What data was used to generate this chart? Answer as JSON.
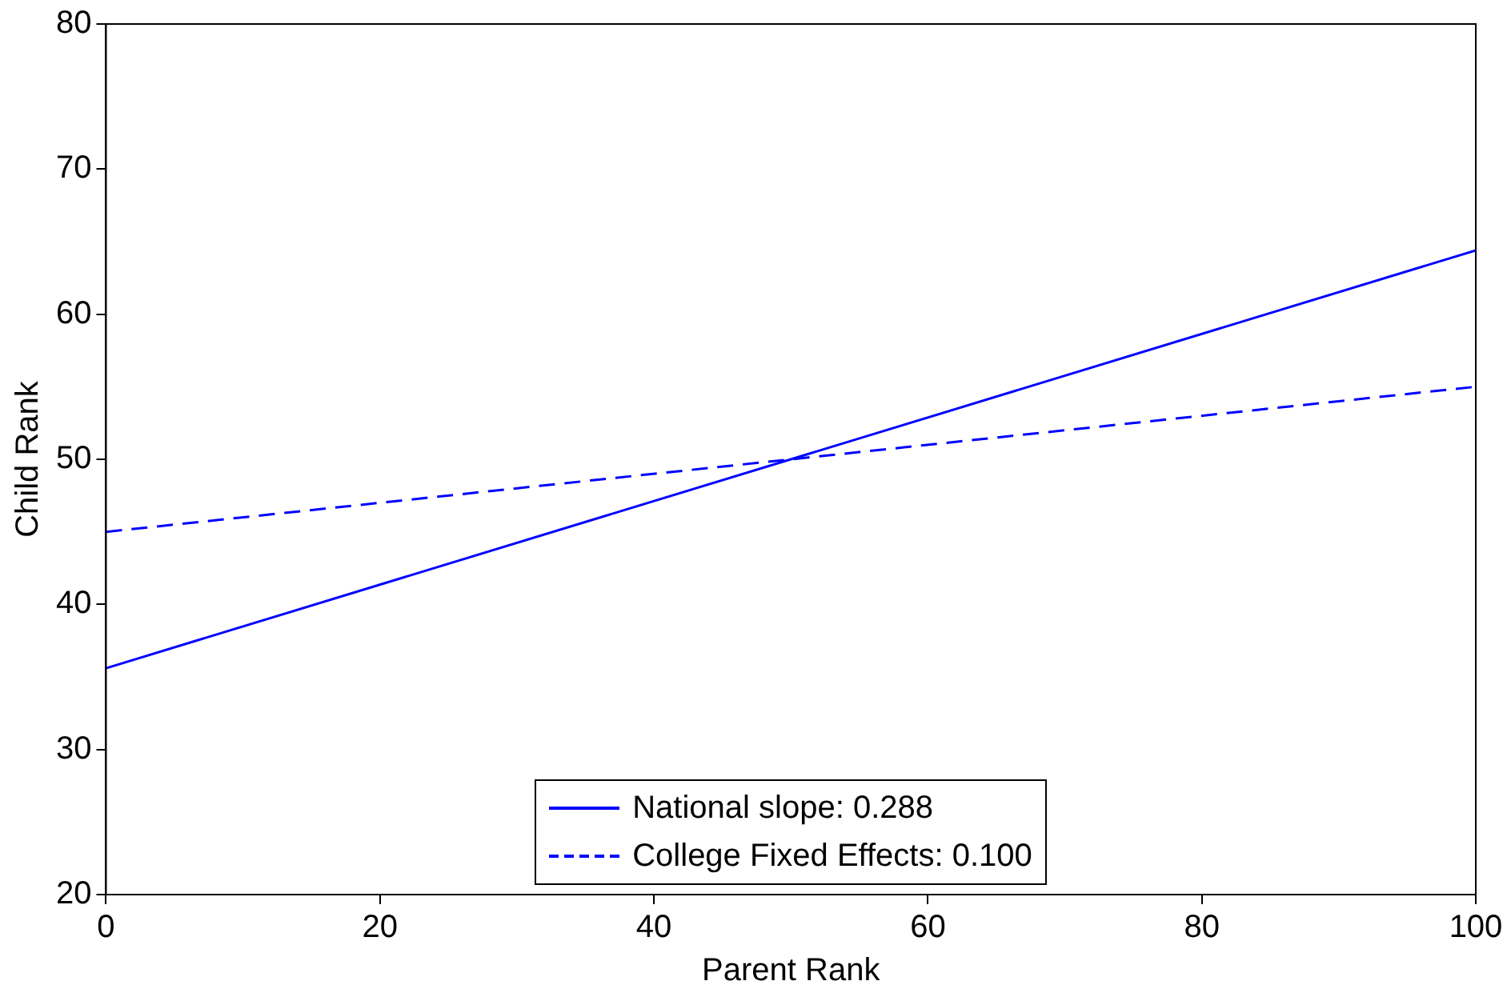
{
  "chart_data": {
    "type": "line",
    "xlabel": "Parent Rank",
    "ylabel": "Child Rank",
    "x": [
      0,
      100
    ],
    "series": [
      {
        "name": "National slope: 0.288",
        "color": "#0000ff",
        "values": [
          35.6,
          64.4
        ],
        "line_style": "solid"
      },
      {
        "name": "College Fixed Effects: 0.100",
        "color": "#0000ff",
        "values": [
          45,
          55
        ],
        "line_style": "dashed"
      }
    ],
    "xlim": [
      0,
      100
    ],
    "xticks": [
      0,
      20,
      40,
      60,
      80,
      100
    ],
    "ylim": [
      20,
      80
    ],
    "yticks": [
      20,
      30,
      40,
      50,
      60,
      70,
      80
    ],
    "grid": false,
    "legend": "bottom",
    "marker": "none"
  }
}
